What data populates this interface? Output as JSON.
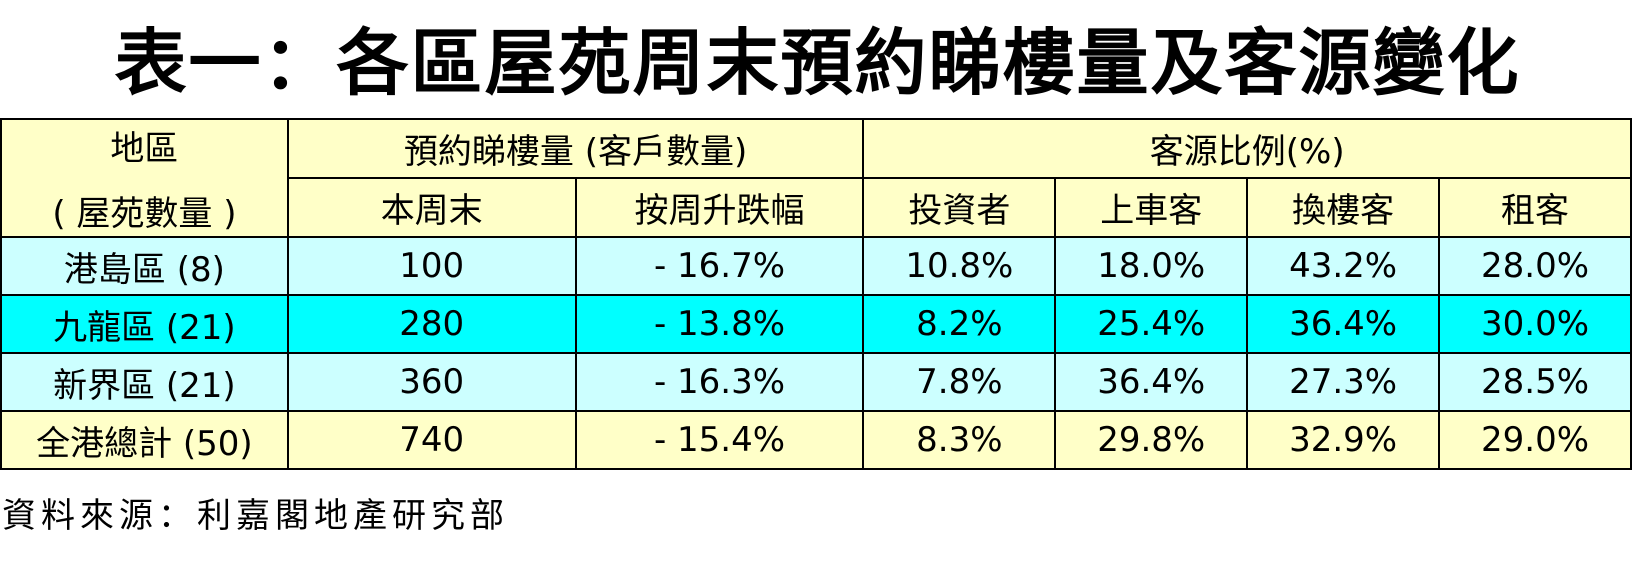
{
  "title": "表一：各區屋苑周末預約睇樓量及客源變化",
  "table": {
    "header": {
      "region_line1": "地區",
      "region_line2": "( 屋苑數量 )",
      "viewing_group": "預約睇樓量 (客戶數量)",
      "source_group": "客源比例(%)",
      "this_weekend": "本周末",
      "weekly_change": "按周升跌幅",
      "investor": "投資者",
      "first_buyer": "上車客",
      "upgrader": "換樓客",
      "tenant": "租客"
    },
    "rows": [
      {
        "region": "港島區 (8)",
        "this_weekend": "100",
        "weekly_change": "- 16.7%",
        "investor": "10.8%",
        "first_buyer": "18.0%",
        "upgrader": "43.2%",
        "tenant": "28.0%"
      },
      {
        "region": "九龍區 (21)",
        "this_weekend": "280",
        "weekly_change": "- 13.8%",
        "investor": "8.2%",
        "first_buyer": "25.4%",
        "upgrader": "36.4%",
        "tenant": "30.0%"
      },
      {
        "region": "新界區 (21)",
        "this_weekend": "360",
        "weekly_change": "- 16.3%",
        "investor": "7.8%",
        "first_buyer": "36.4%",
        "upgrader": "27.3%",
        "tenant": "28.5%"
      }
    ],
    "total": {
      "region": "全港總計 (50)",
      "this_weekend": "740",
      "weekly_change": "- 15.4%",
      "investor": "8.3%",
      "first_buyer": "29.8%",
      "upgrader": "32.9%",
      "tenant": "29.0%"
    }
  },
  "source": "資料來源：利嘉閣地產研究部",
  "colors": {
    "header_bg": "#ffffc8",
    "row_light_bg": "#ccffff",
    "row_highlight_bg": "#00ffff",
    "total_bg": "#ffffc8"
  }
}
